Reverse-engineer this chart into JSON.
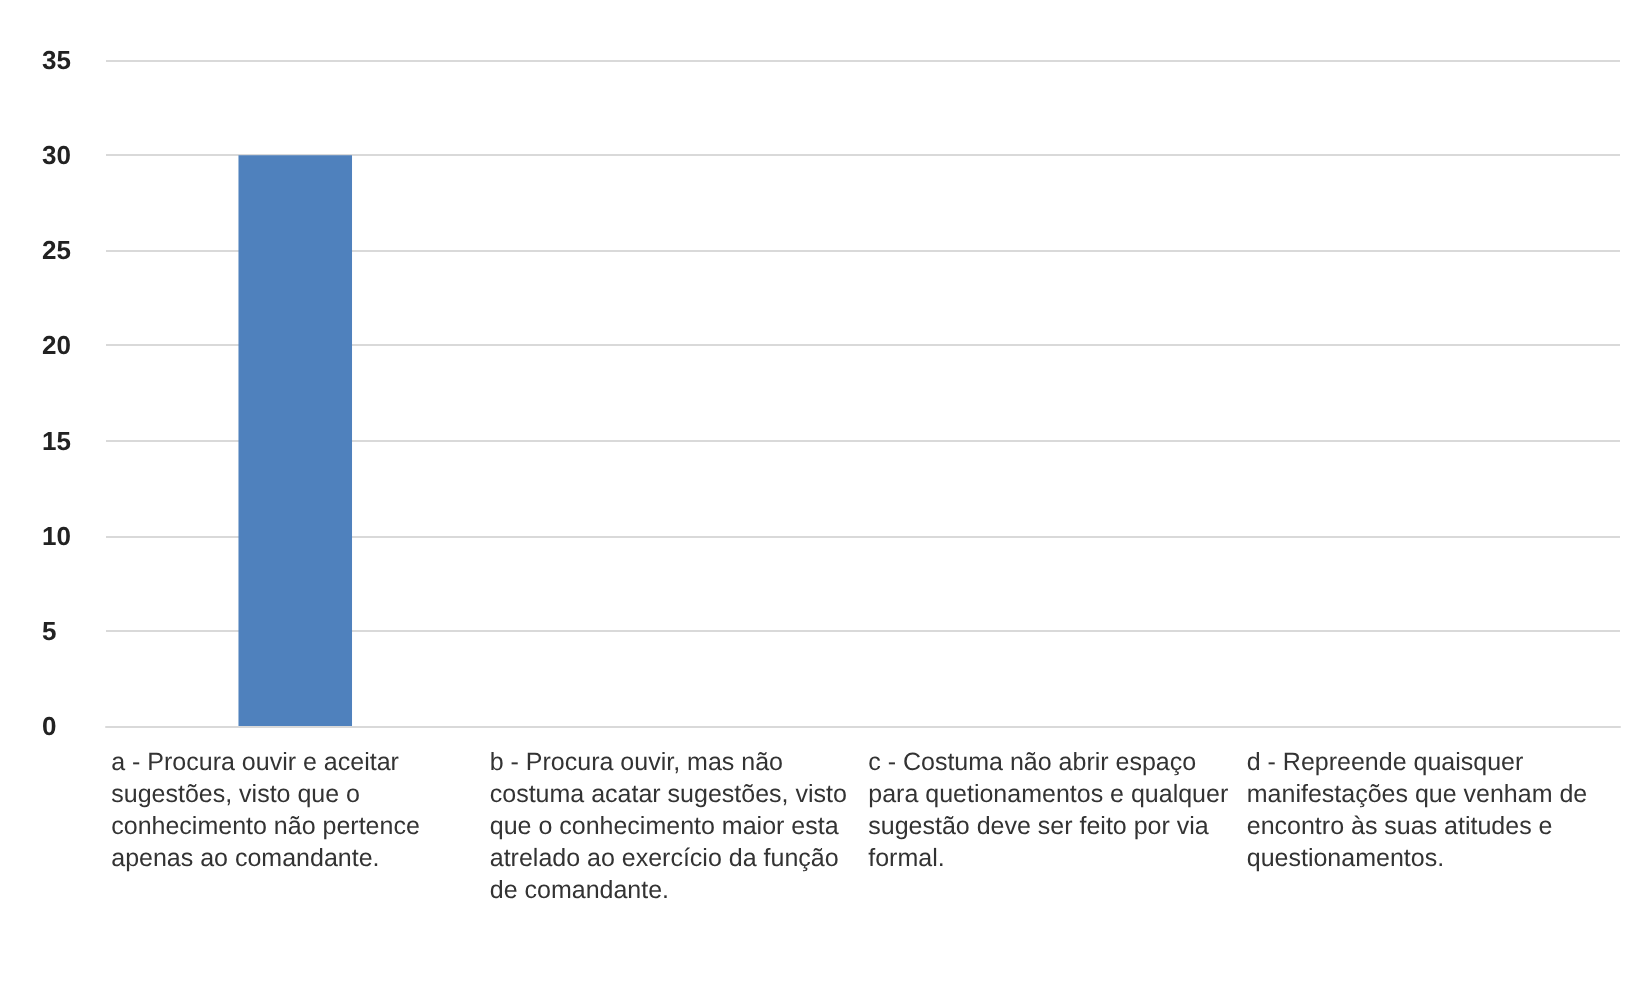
{
  "chart_data": {
    "type": "bar",
    "categories": [
      "a - Procura ouvir e aceitar sugestões, visto que o conhecimento não pertence apenas ao comandante.",
      "b - Procura ouvir, mas não costuma acatar sugestões, visto que o conhecimento maior esta atrelado ao exercício da função de comandante.",
      "c - Costuma não abrir espaço para quetionamentos e qualquer sugestão deve ser feito por via formal.",
      "d - Repreende quaisquer manifestações que venham de encontro às suas atitudes e questionamentos."
    ],
    "values": [
      30,
      0,
      0,
      0
    ],
    "color": "#4f81bd",
    "ylim": [
      0,
      35
    ],
    "yticks": [
      0,
      5,
      10,
      15,
      20,
      25,
      30,
      35
    ],
    "grid": "y"
  }
}
